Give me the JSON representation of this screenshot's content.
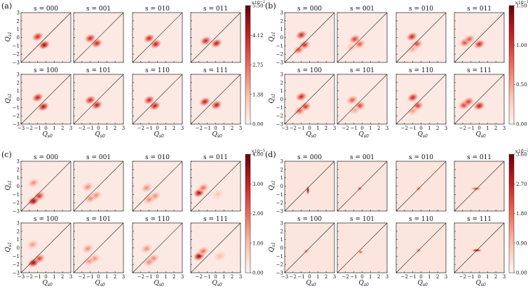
{
  "figure": {
    "axis_label_y": "Q",
    "axis_label_y_sub": "s1",
    "axis_label_x": "Q",
    "axis_label_x_sub": "s0"
  },
  "chart_data": [
    {
      "type": "heatmap",
      "panel": "(a)",
      "subplot_titles": [
        "s = 000",
        "s = 001",
        "s = 010",
        "s = 011",
        "s = 100",
        "s = 101",
        "s = 110",
        "s = 111"
      ],
      "xlim": [
        -3,
        3
      ],
      "ylim": [
        -3,
        3
      ],
      "x_ticks": [
        "−3",
        "−2",
        "−1",
        "0",
        "1",
        "2",
        "3"
      ],
      "y_ticks": [
        "3",
        "2",
        "1",
        "0",
        "−1",
        "−2",
        "−3"
      ],
      "colorbar": {
        "exponent": "×10",
        "exponent_power": "−2",
        "max": 5.5,
        "ticks": [
          "5.50",
          "4.12",
          "2.75",
          "1.38",
          "0.00"
        ]
      },
      "background_color": "#fce9e4",
      "blobs": [
        [
          {
            "x": -1.0,
            "y": 0.1,
            "amp": 0.8
          },
          {
            "x": -0.2,
            "y": -0.9,
            "amp": 0.95
          }
        ],
        [
          {
            "x": -1.0,
            "y": -0.1,
            "amp": 0.8
          },
          {
            "x": -0.2,
            "y": -0.7,
            "amp": 0.8
          }
        ],
        [
          {
            "x": -1.0,
            "y": -0.1,
            "amp": 0.8
          },
          {
            "x": -0.2,
            "y": -0.8,
            "amp": 0.85
          }
        ],
        [
          {
            "x": -1.2,
            "y": -0.4,
            "amp": 0.8
          },
          {
            "x": 0.1,
            "y": -0.7,
            "amp": 0.85
          }
        ],
        [
          {
            "x": -1.0,
            "y": 0.2,
            "amp": 0.85
          },
          {
            "x": -0.3,
            "y": -0.9,
            "amp": 0.9
          }
        ],
        [
          {
            "x": -1.0,
            "y": -0.1,
            "amp": 0.8
          },
          {
            "x": -0.2,
            "y": -0.7,
            "amp": 0.85
          }
        ],
        [
          {
            "x": -1.0,
            "y": -0.1,
            "amp": 0.8
          },
          {
            "x": -0.3,
            "y": -0.8,
            "amp": 0.85
          }
        ],
        [
          {
            "x": -1.3,
            "y": -0.3,
            "amp": 0.85
          },
          {
            "x": 0.1,
            "y": -0.7,
            "amp": 0.85
          }
        ]
      ]
    },
    {
      "type": "heatmap",
      "panel": "(b)",
      "subplot_titles": [
        "s = 000",
        "s = 001",
        "s = 010",
        "s = 011",
        "s = 100",
        "s = 101",
        "s = 110",
        "s = 111"
      ],
      "xlim": [
        -3,
        3
      ],
      "ylim": [
        -3,
        3
      ],
      "x_ticks": [
        "−3",
        "−2",
        "−1",
        "0",
        "1",
        "2",
        "3"
      ],
      "y_ticks": [
        "3",
        "2",
        "1",
        "0",
        "−1",
        "−2",
        "−3"
      ],
      "colorbar": {
        "exponent": "×10",
        "exponent_power": "−1",
        "max": 1.5,
        "ticks": [
          "1.50",
          "1.00",
          "0.50",
          "0.00"
        ]
      },
      "background_color": "#fce9e4",
      "blobs": [
        [
          {
            "x": -1.0,
            "y": 0.3,
            "amp": 0.8
          },
          {
            "x": -0.6,
            "y": -0.9,
            "amp": 0.75
          },
          {
            "x": -1.3,
            "y": -1.5,
            "amp": 0.6
          }
        ],
        [
          {
            "x": -0.9,
            "y": -0.2,
            "amp": 0.7
          },
          {
            "x": -0.3,
            "y": -0.8,
            "amp": 0.6
          },
          {
            "x": -1.3,
            "y": -1.2,
            "amp": 0.3
          }
        ],
        [
          {
            "x": -1.1,
            "y": 0.1,
            "amp": 0.8
          },
          {
            "x": -0.5,
            "y": -0.8,
            "amp": 0.65
          },
          {
            "x": -1.0,
            "y": -1.4,
            "amp": 0.35
          }
        ],
        [
          {
            "x": -1.7,
            "y": -0.6,
            "amp": 0.7
          },
          {
            "x": -1.2,
            "y": -0.2,
            "amp": 0.6
          },
          {
            "x": 0.0,
            "y": -0.8,
            "amp": 0.8
          }
        ],
        [
          {
            "x": -1.0,
            "y": 0.3,
            "amp": 0.8
          },
          {
            "x": -0.5,
            "y": -0.9,
            "amp": 0.75
          },
          {
            "x": -1.2,
            "y": -1.4,
            "amp": 0.6
          }
        ],
        [
          {
            "x": -1.2,
            "y": -0.1,
            "amp": 0.6
          },
          {
            "x": -0.3,
            "y": -0.8,
            "amp": 0.7
          },
          {
            "x": -0.9,
            "y": -1.3,
            "amp": 0.35
          }
        ],
        [
          {
            "x": -1.0,
            "y": 0.2,
            "amp": 0.8
          },
          {
            "x": -0.4,
            "y": -0.8,
            "amp": 0.7
          },
          {
            "x": -1.0,
            "y": -1.4,
            "amp": 0.4
          }
        ],
        [
          {
            "x": -1.8,
            "y": -0.7,
            "amp": 0.75
          },
          {
            "x": -1.3,
            "y": -0.3,
            "amp": 0.7
          },
          {
            "x": 0.0,
            "y": -0.8,
            "amp": 0.85
          }
        ]
      ]
    },
    {
      "type": "heatmap",
      "panel": "(c)",
      "subplot_titles": [
        "s = 000",
        "s = 001",
        "s = 010",
        "s = 011",
        "s = 100",
        "s = 101",
        "s = 110",
        "s = 111"
      ],
      "xlim": [
        -3,
        3
      ],
      "ylim": [
        -3,
        3
      ],
      "x_ticks": [
        "−3",
        "−2",
        "−1",
        "0",
        "1",
        "2",
        "3"
      ],
      "y_ticks": [
        "3",
        "2",
        "1",
        "0",
        "−1",
        "−2",
        "−3"
      ],
      "colorbar": {
        "exponent": "×10",
        "exponent_power": "−5",
        "max": 4.0,
        "ticks": [
          "4.00",
          "3.00",
          "2.00",
          "1.00",
          "0.00"
        ]
      },
      "background_color": "#fce9e4",
      "blobs": [
        [
          {
            "x": -1.5,
            "y": 0.4,
            "amp": 0.45
          },
          {
            "x": -0.8,
            "y": -1.2,
            "amp": 0.75
          },
          {
            "x": -1.5,
            "y": -1.8,
            "amp": 0.95
          }
        ],
        [
          {
            "x": -1.3,
            "y": -0.1,
            "amp": 0.45
          },
          {
            "x": -0.3,
            "y": -1.1,
            "amp": 0.45
          },
          {
            "x": -1.0,
            "y": -1.5,
            "amp": 0.45
          }
        ],
        [
          {
            "x": -1.3,
            "y": -0.2,
            "amp": 0.45
          },
          {
            "x": -0.3,
            "y": -1.2,
            "amp": 0.45
          },
          {
            "x": -1.0,
            "y": -1.6,
            "amp": 0.45
          }
        ],
        [
          {
            "x": -2.0,
            "y": -0.8,
            "amp": 0.95
          },
          {
            "x": -1.5,
            "y": -0.2,
            "amp": 0.55
          },
          {
            "x": 0.3,
            "y": -1.0,
            "amp": 0.25
          }
        ],
        [
          {
            "x": -1.6,
            "y": 0.4,
            "amp": 0.4
          },
          {
            "x": -0.8,
            "y": -1.3,
            "amp": 0.7
          },
          {
            "x": -1.5,
            "y": -1.8,
            "amp": 0.95
          }
        ],
        [
          {
            "x": -1.3,
            "y": -0.1,
            "amp": 0.45
          },
          {
            "x": -0.5,
            "y": -1.3,
            "amp": 0.45
          },
          {
            "x": -1.1,
            "y": -1.6,
            "amp": 0.4
          }
        ],
        [
          {
            "x": -1.3,
            "y": -0.1,
            "amp": 0.45
          },
          {
            "x": -0.5,
            "y": -1.3,
            "amp": 0.5
          },
          {
            "x": -1.0,
            "y": -1.7,
            "amp": 0.45
          }
        ],
        [
          {
            "x": -2.0,
            "y": -1.0,
            "amp": 1.0
          },
          {
            "x": -1.5,
            "y": -0.4,
            "amp": 0.55
          },
          {
            "x": 0.5,
            "y": -1.0,
            "amp": 0.3
          }
        ]
      ]
    },
    {
      "type": "heatmap",
      "panel": "(d)",
      "subplot_titles": [
        "s = 000",
        "s = 001",
        "s = 010",
        "s = 011",
        "s = 100",
        "s = 101",
        "s = 110",
        "s = 111"
      ],
      "xlim": [
        -3,
        3
      ],
      "ylim": [
        -3,
        3
      ],
      "x_ticks": [
        "−3",
        "−2",
        "−1",
        "0",
        "1",
        "2",
        "3"
      ],
      "y_ticks": [
        "3",
        "2",
        "1",
        "0",
        "−1",
        "−2",
        "−3"
      ],
      "colorbar": {
        "exponent": "×10",
        "exponent_power": "−2",
        "max": 3.6,
        "ticks": [
          "3.60",
          "2.70",
          "1.80",
          "0.90",
          "0.00"
        ]
      },
      "background_color": "#fbe5dc",
      "blobs": [
        [
          {
            "x": -0.2,
            "y": -0.5,
            "amp": 1.0,
            "shape": "v"
          }
        ],
        [
          {
            "x": -0.3,
            "y": -0.3,
            "amp": 0.6
          }
        ],
        [
          {
            "x": -0.3,
            "y": -0.3,
            "amp": 0.55
          }
        ],
        [
          {
            "x": -0.4,
            "y": -0.3,
            "amp": 0.7,
            "shape": "h"
          }
        ],
        [
          {
            "x": -0.4,
            "y": -0.4,
            "amp": 0.5
          }
        ],
        [
          {
            "x": -0.2,
            "y": -0.5,
            "amp": 0.6
          }
        ],
        [
          {
            "x": -0.3,
            "y": -0.3,
            "amp": 0.5
          }
        ],
        [
          {
            "x": -0.3,
            "y": -0.3,
            "amp": 0.95,
            "shape": "h"
          }
        ]
      ]
    }
  ]
}
